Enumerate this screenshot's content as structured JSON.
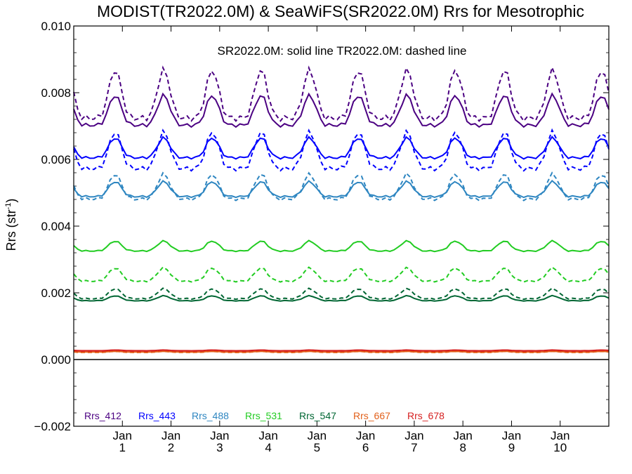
{
  "chart_data": {
    "type": "line",
    "title": "MODIST(TR2022.0M) & SeaWiFS(SR2022.0M)  Rrs for Mesotrophic",
    "subtitle": "SR2022.0M: solid line   TR2022.0M: dashed line",
    "ylabel_main": "Rrs (str",
    "ylabel_sup": "-1",
    "ylabel_end": ")",
    "xlim": [
      0,
      11
    ],
    "ylim": [
      -0.002,
      0.01
    ],
    "yticks": [
      "0.010",
      "0.008",
      "0.006",
      "0.004",
      "0.002",
      "0.000",
      "−0.002"
    ],
    "ytick_values": [
      0.01,
      0.008,
      0.006,
      0.004,
      0.002,
      0.0,
      -0.002
    ],
    "xticks": [
      {
        "month": "Jan",
        "year": "1",
        "x": 1
      },
      {
        "month": "Jan",
        "year": "2",
        "x": 2
      },
      {
        "month": "Jan",
        "year": "3",
        "x": 3
      },
      {
        "month": "Jan",
        "year": "4",
        "x": 4
      },
      {
        "month": "Jan",
        "year": "5",
        "x": 5
      },
      {
        "month": "Jan",
        "year": "6",
        "x": 6
      },
      {
        "month": "Jan",
        "year": "7",
        "x": 7
      },
      {
        "month": "Jan",
        "year": "8",
        "x": 8
      },
      {
        "month": "Jan",
        "year": "9",
        "x": 9
      },
      {
        "month": "Jan",
        "year": "10",
        "x": 10
      }
    ],
    "peak_phase": 0.85,
    "samples_per_year": 12,
    "grid": false,
    "zero_line": 0,
    "series": [
      {
        "name": "Rrs_412",
        "color": "#4b0082",
        "solid": {
          "base": 0.00725,
          "amp": 0.0009
        },
        "dashed": {
          "base": 0.0076,
          "amp": 0.00145
        }
      },
      {
        "name": "Rrs_443",
        "color": "#0000ff",
        "solid": {
          "base": 0.0062,
          "amp": 0.0006
        },
        "dashed": {
          "base": 0.006,
          "amp": 0.0011
        }
      },
      {
        "name": "Rrs_488",
        "color": "#2e86c1",
        "solid": {
          "base": 0.005,
          "amp": 0.00045
        },
        "dashed": {
          "base": 0.005,
          "amp": 0.00075
        }
      },
      {
        "name": "Rrs_531",
        "color": "#22cc22",
        "solid": {
          "base": 0.00333,
          "amp": 0.0003
        },
        "dashed": {
          "base": 0.00245,
          "amp": 0.0004
        }
      },
      {
        "name": "Rrs_547",
        "color": "#006633",
        "solid": {
          "base": 0.0018,
          "amp": 0.00015
        },
        "dashed": {
          "base": 0.0019,
          "amp": 0.0003
        }
      },
      {
        "name": "Rrs_667",
        "color": "#e2601a",
        "solid": {
          "base": 0.00023,
          "amp": 2e-05
        },
        "dashed": {
          "base": 0.00022,
          "amp": 3e-05
        }
      },
      {
        "name": "Rrs_678",
        "color": "#d62020",
        "solid": {
          "base": 0.00027,
          "amp": 2e-05
        },
        "dashed": {
          "base": 0.00026,
          "amp": 3e-05
        }
      }
    ]
  }
}
